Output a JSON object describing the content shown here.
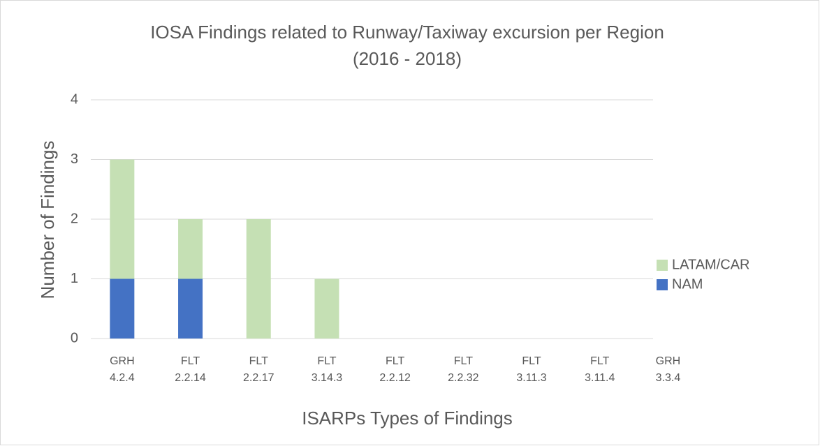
{
  "chart_data": {
    "type": "stacked_bar",
    "title": [
      "IOSA Findings related to Runway/Taxiway excursion per Region",
      "(2016 - 2018)"
    ],
    "x_label": "ISARPs Types of Findings",
    "y_label": "Number of Findings",
    "categories": [
      [
        "GRH",
        "4.2.4"
      ],
      [
        "FLT",
        "2.2.14"
      ],
      [
        "FLT",
        "2.2.17"
      ],
      [
        "FLT",
        "3.14.3"
      ],
      [
        "FLT",
        "2.2.12"
      ],
      [
        "FLT",
        "2.2.32"
      ],
      [
        "FLT",
        "3.11.3"
      ],
      [
        "FLT",
        "3.11.4"
      ],
      [
        "GRH",
        "3.3.4"
      ]
    ],
    "series": [
      {
        "name": "NAM",
        "color": "#4472c4",
        "values": [
          1,
          1,
          0,
          0,
          0,
          0,
          0,
          0,
          0
        ]
      },
      {
        "name": "LATAM/CAR",
        "color": "#c5e0b4",
        "values": [
          2,
          1,
          2,
          1,
          0,
          0,
          0,
          0,
          0
        ]
      }
    ],
    "ylim": [
      0,
      4
    ],
    "yticks": [
      0,
      1,
      2,
      3,
      4
    ],
    "grid": true,
    "legend": "right"
  }
}
